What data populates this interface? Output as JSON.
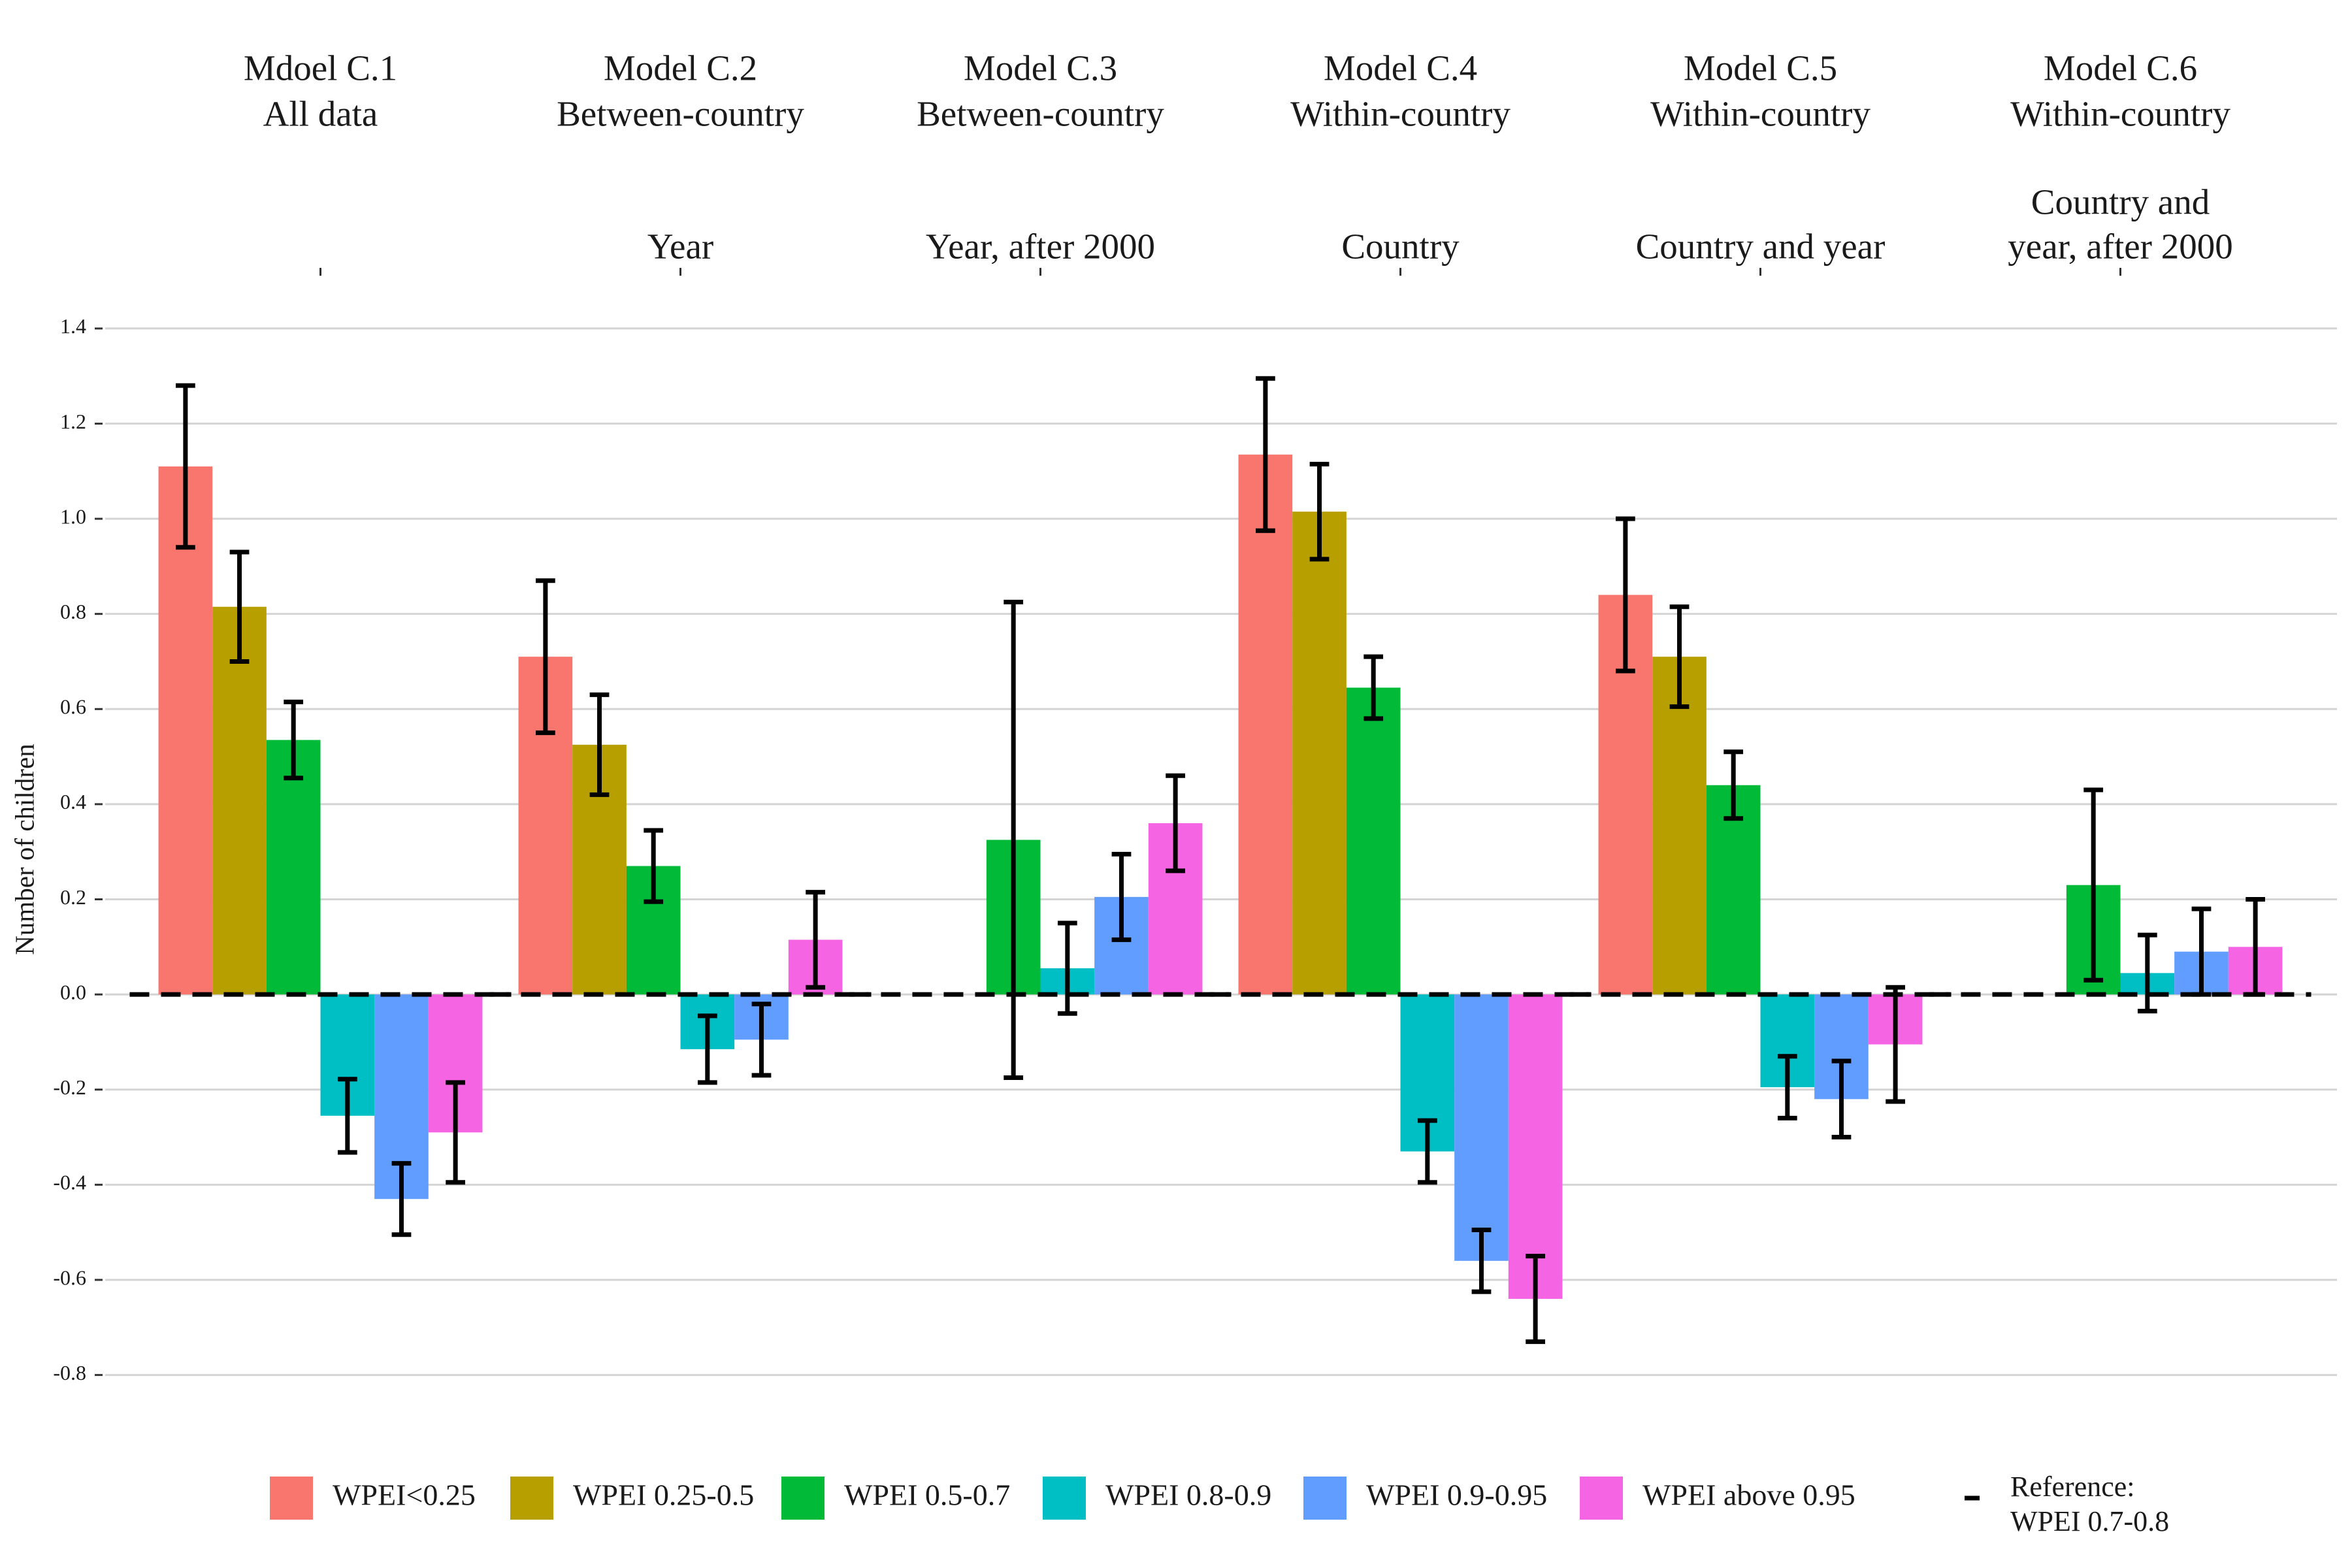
{
  "chart_data": {
    "type": "bar",
    "categories": [
      "Mdoel C.1",
      "Model C.2",
      "Model C.3",
      "Model C.4",
      "Model C.5",
      "Model C.6"
    ],
    "category_subtitles": [
      "All data",
      "Between-country",
      "Between-country",
      "Within-country",
      "Within-country",
      "Within-country"
    ],
    "category_notes": [
      null,
      [
        "Year"
      ],
      [
        "Year, after 2000"
      ],
      [
        "Country"
      ],
      [
        "Country and year"
      ],
      [
        "Country and",
        "year, after 2000"
      ]
    ],
    "y_label": "Number of children",
    "series": [
      {
        "name": "WPEI<0.25",
        "color": "#F8766D",
        "values": [
          1.11,
          0.71,
          null,
          1.135,
          0.84,
          null
        ],
        "errors": [
          0.17,
          0.16,
          null,
          0.16,
          0.16,
          null
        ]
      },
      {
        "name": "WPEI 0.25-0.5",
        "color": "#B79F00",
        "values": [
          0.815,
          0.525,
          null,
          1.015,
          0.71,
          null
        ],
        "errors": [
          0.115,
          0.105,
          null,
          0.1,
          0.105,
          null
        ]
      },
      {
        "name": "WPEI 0.5-0.7",
        "color": "#00BA38",
        "values": [
          0.535,
          0.27,
          0.325,
          0.645,
          0.44,
          0.23
        ],
        "errors": [
          0.08,
          0.075,
          0.5,
          0.065,
          0.07,
          0.2
        ]
      },
      {
        "name": "WPEI 0.8-0.9",
        "color": "#00BFC4",
        "values": [
          -0.255,
          -0.115,
          0.055,
          -0.33,
          -0.195,
          0.045
        ],
        "errors": [
          0.077,
          0.07,
          0.095,
          0.065,
          0.065,
          0.08
        ]
      },
      {
        "name": "WPEI 0.9-0.95",
        "color": "#619CFF",
        "values": [
          -0.43,
          -0.095,
          0.205,
          -0.56,
          -0.22,
          0.09
        ],
        "errors": [
          0.075,
          0.075,
          0.09,
          0.065,
          0.08,
          0.09
        ]
      },
      {
        "name": "WPEI above 0.95",
        "color": "#F564E3",
        "values": [
          -0.29,
          0.115,
          0.36,
          -0.64,
          -0.105,
          0.1
        ],
        "errors": [
          0.105,
          0.1,
          0.1,
          0.09,
          0.12,
          0.1
        ]
      }
    ],
    "reference_value": 0,
    "reference_label": [
      "Reference:",
      "WPEI 0.7-0.8"
    ],
    "ylim": [
      -0.85,
      1.5
    ],
    "yticks": [
      -0.8,
      -0.6,
      -0.4,
      -0.2,
      {
        "value": 0,
        "label": "0.0"
      },
      0.2,
      0.4,
      0.6,
      0.8,
      {
        "value": 1,
        "label": "1.0"
      },
      1.2,
      1.4
    ],
    "grid": true,
    "legend": "bottom"
  }
}
